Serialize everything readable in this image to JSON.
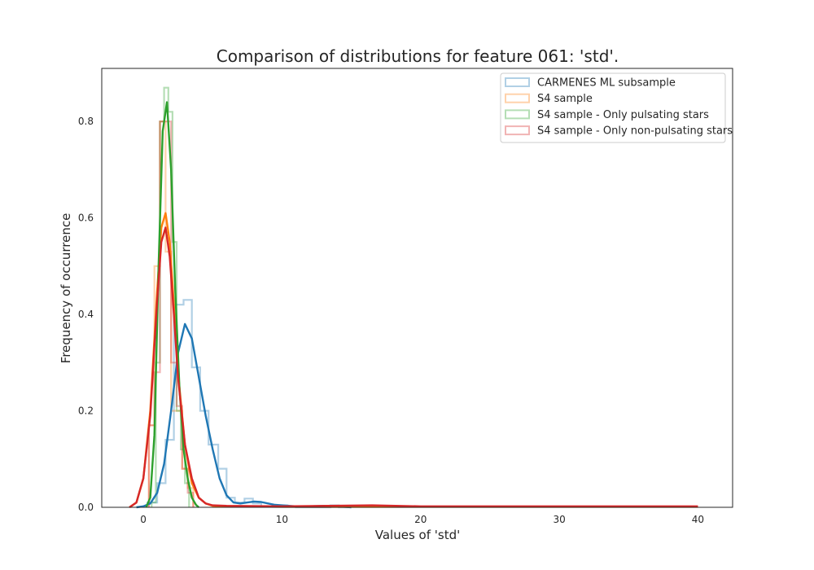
{
  "chart_data": {
    "type": "histogram+kde",
    "title": "Comparison of distributions for feature 061: 'std'.",
    "xlabel": "Values of 'std'",
    "ylabel": "Frequency of occurrence",
    "xlim": [
      -3,
      42.5
    ],
    "ylim": [
      0,
      0.91
    ],
    "xticks": [
      0,
      10,
      20,
      30,
      40
    ],
    "xtick_labels": [
      "0",
      "10",
      "20",
      "30",
      "40"
    ],
    "yticks": [
      0.0,
      0.2,
      0.4,
      0.6,
      0.8
    ],
    "ytick_labels": [
      "0.0",
      "0.2",
      "0.4",
      "0.6",
      "0.8"
    ],
    "grid": false,
    "legend_position": "top-right",
    "series": [
      {
        "name": "CARMENES ML subsample",
        "color": "#1f77b4",
        "hist_edges": [
          0.3,
          1.0,
          1.6,
          2.2,
          2.9,
          3.5,
          4.1,
          4.7,
          5.4,
          6.0,
          6.6,
          7.3,
          7.9,
          8.5,
          9.1,
          9.8,
          10.4,
          11.0,
          11.6,
          12.3,
          12.9,
          13.5,
          14.1,
          14.8
        ],
        "hist_values": [
          0.01,
          0.05,
          0.14,
          0.42,
          0.43,
          0.29,
          0.2,
          0.13,
          0.08,
          0.02,
          0.01,
          0.018,
          0.008,
          0.002,
          0.002,
          0.004,
          0.001,
          0.0,
          0.0,
          0.0,
          0.0,
          0.004,
          0.0
        ],
        "kde_x": [
          -0.5,
          0,
          0.5,
          1,
          1.5,
          2,
          2.5,
          3,
          3.5,
          4,
          4.5,
          5,
          5.5,
          6,
          6.5,
          7,
          7.5,
          8,
          8.5,
          9,
          9.5,
          10,
          11,
          12,
          13,
          14,
          15
        ],
        "kde_y": [
          0.0,
          0.002,
          0.008,
          0.03,
          0.09,
          0.2,
          0.32,
          0.38,
          0.35,
          0.27,
          0.19,
          0.12,
          0.06,
          0.025,
          0.01,
          0.008,
          0.01,
          0.012,
          0.011,
          0.008,
          0.005,
          0.004,
          0.002,
          0.002,
          0.003,
          0.002,
          0.0
        ]
      },
      {
        "name": "S4 sample",
        "color": "#ff7f0e",
        "hist_edges": [
          0.4,
          0.8,
          1.2,
          1.6,
          2.0,
          2.4,
          2.8,
          3.2,
          3.6
        ],
        "hist_values": [
          0.17,
          0.5,
          0.8,
          0.53,
          0.2,
          0.2,
          0.08,
          0.04
        ],
        "kde_x": [
          -1,
          -0.5,
          0,
          0.5,
          1,
          1.3,
          1.6,
          1.9,
          2.2,
          2.5,
          3,
          3.5,
          4,
          4.5,
          5,
          6,
          10,
          20,
          30,
          40
        ],
        "kde_y": [
          0.0,
          0.01,
          0.06,
          0.2,
          0.45,
          0.58,
          0.61,
          0.55,
          0.42,
          0.28,
          0.13,
          0.05,
          0.02,
          0.008,
          0.003,
          0.002,
          0.001,
          0.001,
          0.001,
          0.001
        ]
      },
      {
        "name": "S4 sample - Only pulsating stars",
        "color": "#2ca02c",
        "hist_edges": [
          0.6,
          0.9,
          1.2,
          1.5,
          1.8,
          2.1,
          2.4,
          2.7,
          3.0,
          3.3
        ],
        "hist_values": [
          0.01,
          0.3,
          0.8,
          0.87,
          0.82,
          0.55,
          0.2,
          0.12,
          0.05
        ],
        "kde_x": [
          0.2,
          0.5,
          0.8,
          1.1,
          1.4,
          1.7,
          2.0,
          2.3,
          2.6,
          2.9,
          3.2,
          3.5,
          3.8,
          4.0
        ],
        "kde_y": [
          0.0,
          0.02,
          0.15,
          0.5,
          0.78,
          0.84,
          0.7,
          0.45,
          0.25,
          0.12,
          0.06,
          0.02,
          0.005,
          0.0
        ]
      },
      {
        "name": "S4 sample - Only non-pulsating stars",
        "color": "#d62728",
        "hist_edges": [
          0.4,
          0.8,
          1.2,
          1.6,
          2.0,
          2.4,
          2.8,
          3.2,
          3.6
        ],
        "hist_values": [
          0.17,
          0.28,
          0.8,
          0.8,
          0.3,
          0.21,
          0.08,
          0.03
        ],
        "kde_x": [
          -1,
          -0.5,
          0,
          0.5,
          1,
          1.3,
          1.6,
          1.9,
          2.2,
          2.5,
          3,
          3.5,
          4,
          4.5,
          5,
          6,
          10,
          16.5,
          20,
          30,
          40
        ],
        "kde_y": [
          0.0,
          0.01,
          0.06,
          0.19,
          0.43,
          0.55,
          0.58,
          0.52,
          0.4,
          0.27,
          0.13,
          0.06,
          0.02,
          0.008,
          0.004,
          0.003,
          0.002,
          0.004,
          0.002,
          0.002,
          0.002
        ]
      }
    ]
  }
}
